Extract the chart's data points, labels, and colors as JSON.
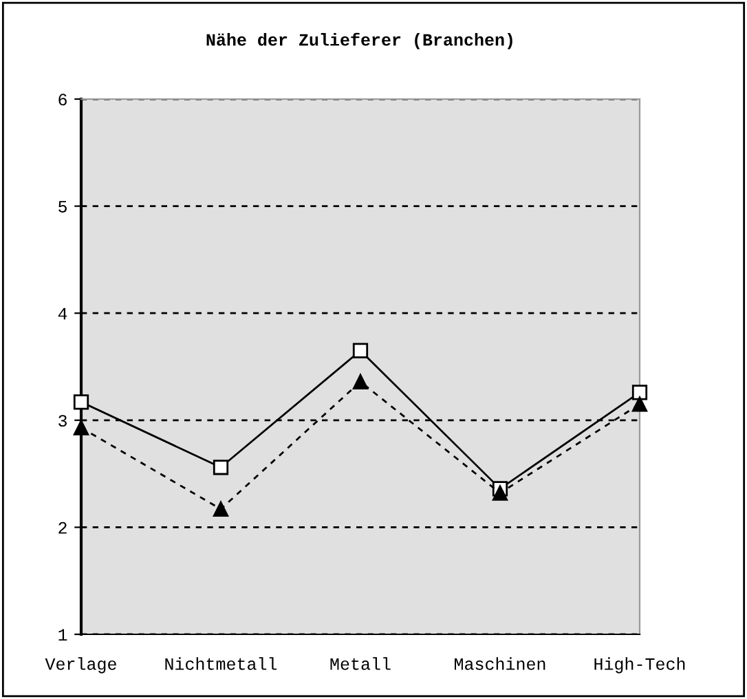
{
  "chart_data": {
    "type": "line",
    "title": "Nähe der Zulieferer (Branchen)",
    "categories": [
      "Verlage",
      "Nichtmetall",
      "Metall",
      "Maschinen",
      "High-Tech"
    ],
    "series": [
      {
        "color": "#000000",
        "values": [
          3.17,
          2.56,
          3.65,
          2.36,
          3.26
        ],
        "marker": "square",
        "line_style": "solid"
      },
      {
        "color": "#000000",
        "values": [
          2.93,
          2.17,
          3.36,
          2.32,
          3.15
        ],
        "marker": "triangle",
        "line_style": "dashed"
      }
    ],
    "ylim": [
      1,
      6
    ],
    "yticks": [
      1,
      2,
      3,
      4,
      5,
      6
    ],
    "grid": "y",
    "legend": false
  }
}
